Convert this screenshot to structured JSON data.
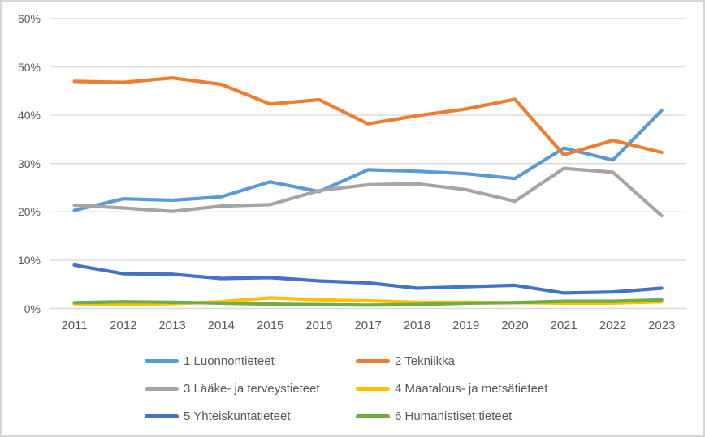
{
  "chart": {
    "background": "#FFFFFF",
    "border_color": "#D6D6D6",
    "gridline_color": "#D9D9D9",
    "text_color": "#595959"
  },
  "chart_data": {
    "type": "line",
    "title": "",
    "xlabel": "",
    "ylabel": "",
    "unit": "percent",
    "grid": true,
    "legend_position": "bottom",
    "ylim": [
      0,
      60
    ],
    "y_tick_step": 10,
    "y_tick_labels": [
      "60%",
      "50%",
      "40%",
      "30%",
      "20%",
      "10%",
      "0%"
    ],
    "x": [
      "2011",
      "2012",
      "2013",
      "2014",
      "2015",
      "2016",
      "2017",
      "2018",
      "2019",
      "2020",
      "2021",
      "2022",
      "2023"
    ],
    "series": [
      {
        "name": "1 Luonnontieteet",
        "color": "#5B9BD5",
        "values": [
          20.3,
          22.7,
          22.4,
          23.1,
          26.2,
          24.2,
          28.7,
          28.4,
          27.9,
          26.9,
          33.2,
          30.7,
          41.0
        ]
      },
      {
        "name": "2 Tekniikka",
        "color": "#ED7D31",
        "values": [
          47.0,
          46.8,
          47.7,
          46.4,
          42.3,
          43.2,
          38.2,
          39.9,
          41.3,
          43.3,
          31.8,
          34.8,
          32.3
        ]
      },
      {
        "name": "3 Lääke- ja terveystieteet",
        "color": "#A5A5A5",
        "values": [
          21.4,
          20.8,
          20.1,
          21.2,
          21.5,
          24.4,
          25.6,
          25.8,
          24.6,
          22.2,
          29.0,
          28.2,
          19.2
        ]
      },
      {
        "name": "4 Maatalous- ja metsätieteet",
        "color": "#FFC000",
        "values": [
          1.0,
          0.9,
          1.0,
          1.4,
          2.2,
          1.8,
          1.6,
          1.3,
          1.3,
          1.2,
          1.1,
          1.1,
          1.4
        ]
      },
      {
        "name": "5 Yhteiskuntatieteet",
        "color": "#4472C4",
        "values": [
          9.0,
          7.2,
          7.1,
          6.2,
          6.4,
          5.7,
          5.3,
          4.2,
          4.5,
          4.8,
          3.2,
          3.4,
          4.2
        ]
      },
      {
        "name": "6 Humanistiset tieteet",
        "color": "#70AD47",
        "values": [
          1.2,
          1.4,
          1.3,
          1.1,
          0.9,
          0.8,
          0.7,
          0.8,
          1.1,
          1.2,
          1.5,
          1.5,
          1.8
        ]
      }
    ]
  }
}
